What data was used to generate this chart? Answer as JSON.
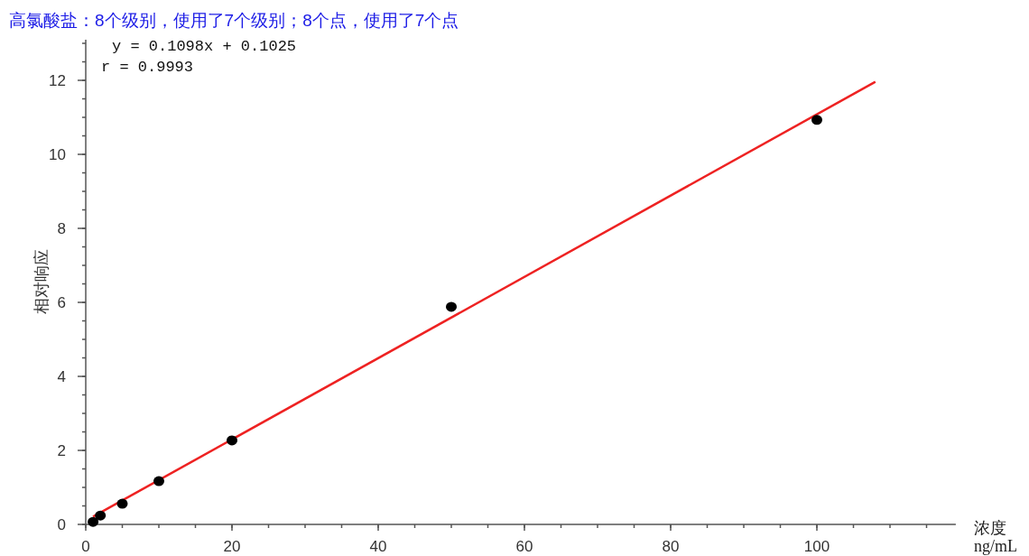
{
  "chart_data": {
    "type": "scatter",
    "title": "高氯酸盐：8个级别，使用了7个级别；8个点，使用了7个点",
    "xlabel": "浓度\nng/mL",
    "ylabel": "相对响应",
    "annotations": [
      "y = 0.1098x + 0.1025",
      "r = 0.9993"
    ],
    "xlim": [
      0,
      119
    ],
    "ylim": [
      0,
      13.1
    ],
    "xticks": [
      0,
      20,
      40,
      60,
      80,
      100
    ],
    "yticks": [
      0,
      2,
      4,
      6,
      8,
      10,
      12
    ],
    "grid": false,
    "marker": "circle",
    "series": [
      {
        "type": "line",
        "marker": "none",
        "color": "#ee2222",
        "x": [
          1,
          108
        ],
        "values": [
          0.21,
          11.96
        ]
      },
      {
        "color": "#000000",
        "x": [
          1,
          2,
          5,
          10,
          20,
          50,
          100
        ],
        "values": [
          0.07,
          0.24,
          0.56,
          1.17,
          2.27,
          5.88,
          10.93
        ]
      }
    ]
  }
}
